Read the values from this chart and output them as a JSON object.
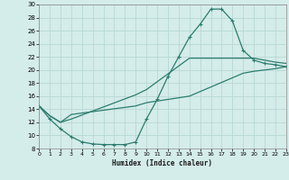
{
  "xlabel": "Humidex (Indice chaleur)",
  "bg_color": "#d4ecea",
  "grid_color": "#b8d8d4",
  "line_color": "#2d7d6e",
  "xlim": [
    0,
    23
  ],
  "ylim": [
    8,
    30
  ],
  "xticks": [
    0,
    1,
    2,
    3,
    4,
    5,
    6,
    7,
    8,
    9,
    10,
    11,
    12,
    13,
    14,
    15,
    16,
    17,
    18,
    19,
    20,
    21,
    22,
    23
  ],
  "yticks": [
    8,
    10,
    12,
    14,
    16,
    18,
    20,
    22,
    24,
    26,
    28,
    30
  ],
  "line1_x": [
    0,
    1,
    2,
    3,
    4,
    5,
    6,
    7,
    8,
    9,
    10,
    11,
    12,
    13,
    14,
    15,
    16,
    17,
    18,
    19,
    20,
    21,
    22,
    23
  ],
  "line1_y": [
    14.5,
    12.5,
    11.0,
    9.8,
    9.0,
    8.7,
    8.6,
    8.6,
    8.6,
    9.0,
    12.5,
    15.5,
    19.0,
    22.0,
    25.0,
    27.0,
    29.3,
    29.3,
    27.5,
    23.0,
    21.5,
    21.0,
    20.8,
    20.5
  ],
  "line2_x": [
    0,
    1,
    2,
    3,
    9,
    10,
    14,
    19,
    20,
    21,
    22,
    23
  ],
  "line2_y": [
    14.5,
    13.0,
    12.0,
    12.5,
    16.2,
    17.0,
    21.8,
    21.8,
    21.8,
    21.5,
    21.2,
    21.0
  ],
  "line3_x": [
    0,
    1,
    2,
    3,
    9,
    10,
    14,
    19,
    20,
    21,
    22,
    23
  ],
  "line3_y": [
    14.5,
    13.0,
    12.0,
    13.2,
    14.5,
    15.0,
    16.0,
    19.5,
    19.8,
    20.0,
    20.2,
    20.5
  ]
}
